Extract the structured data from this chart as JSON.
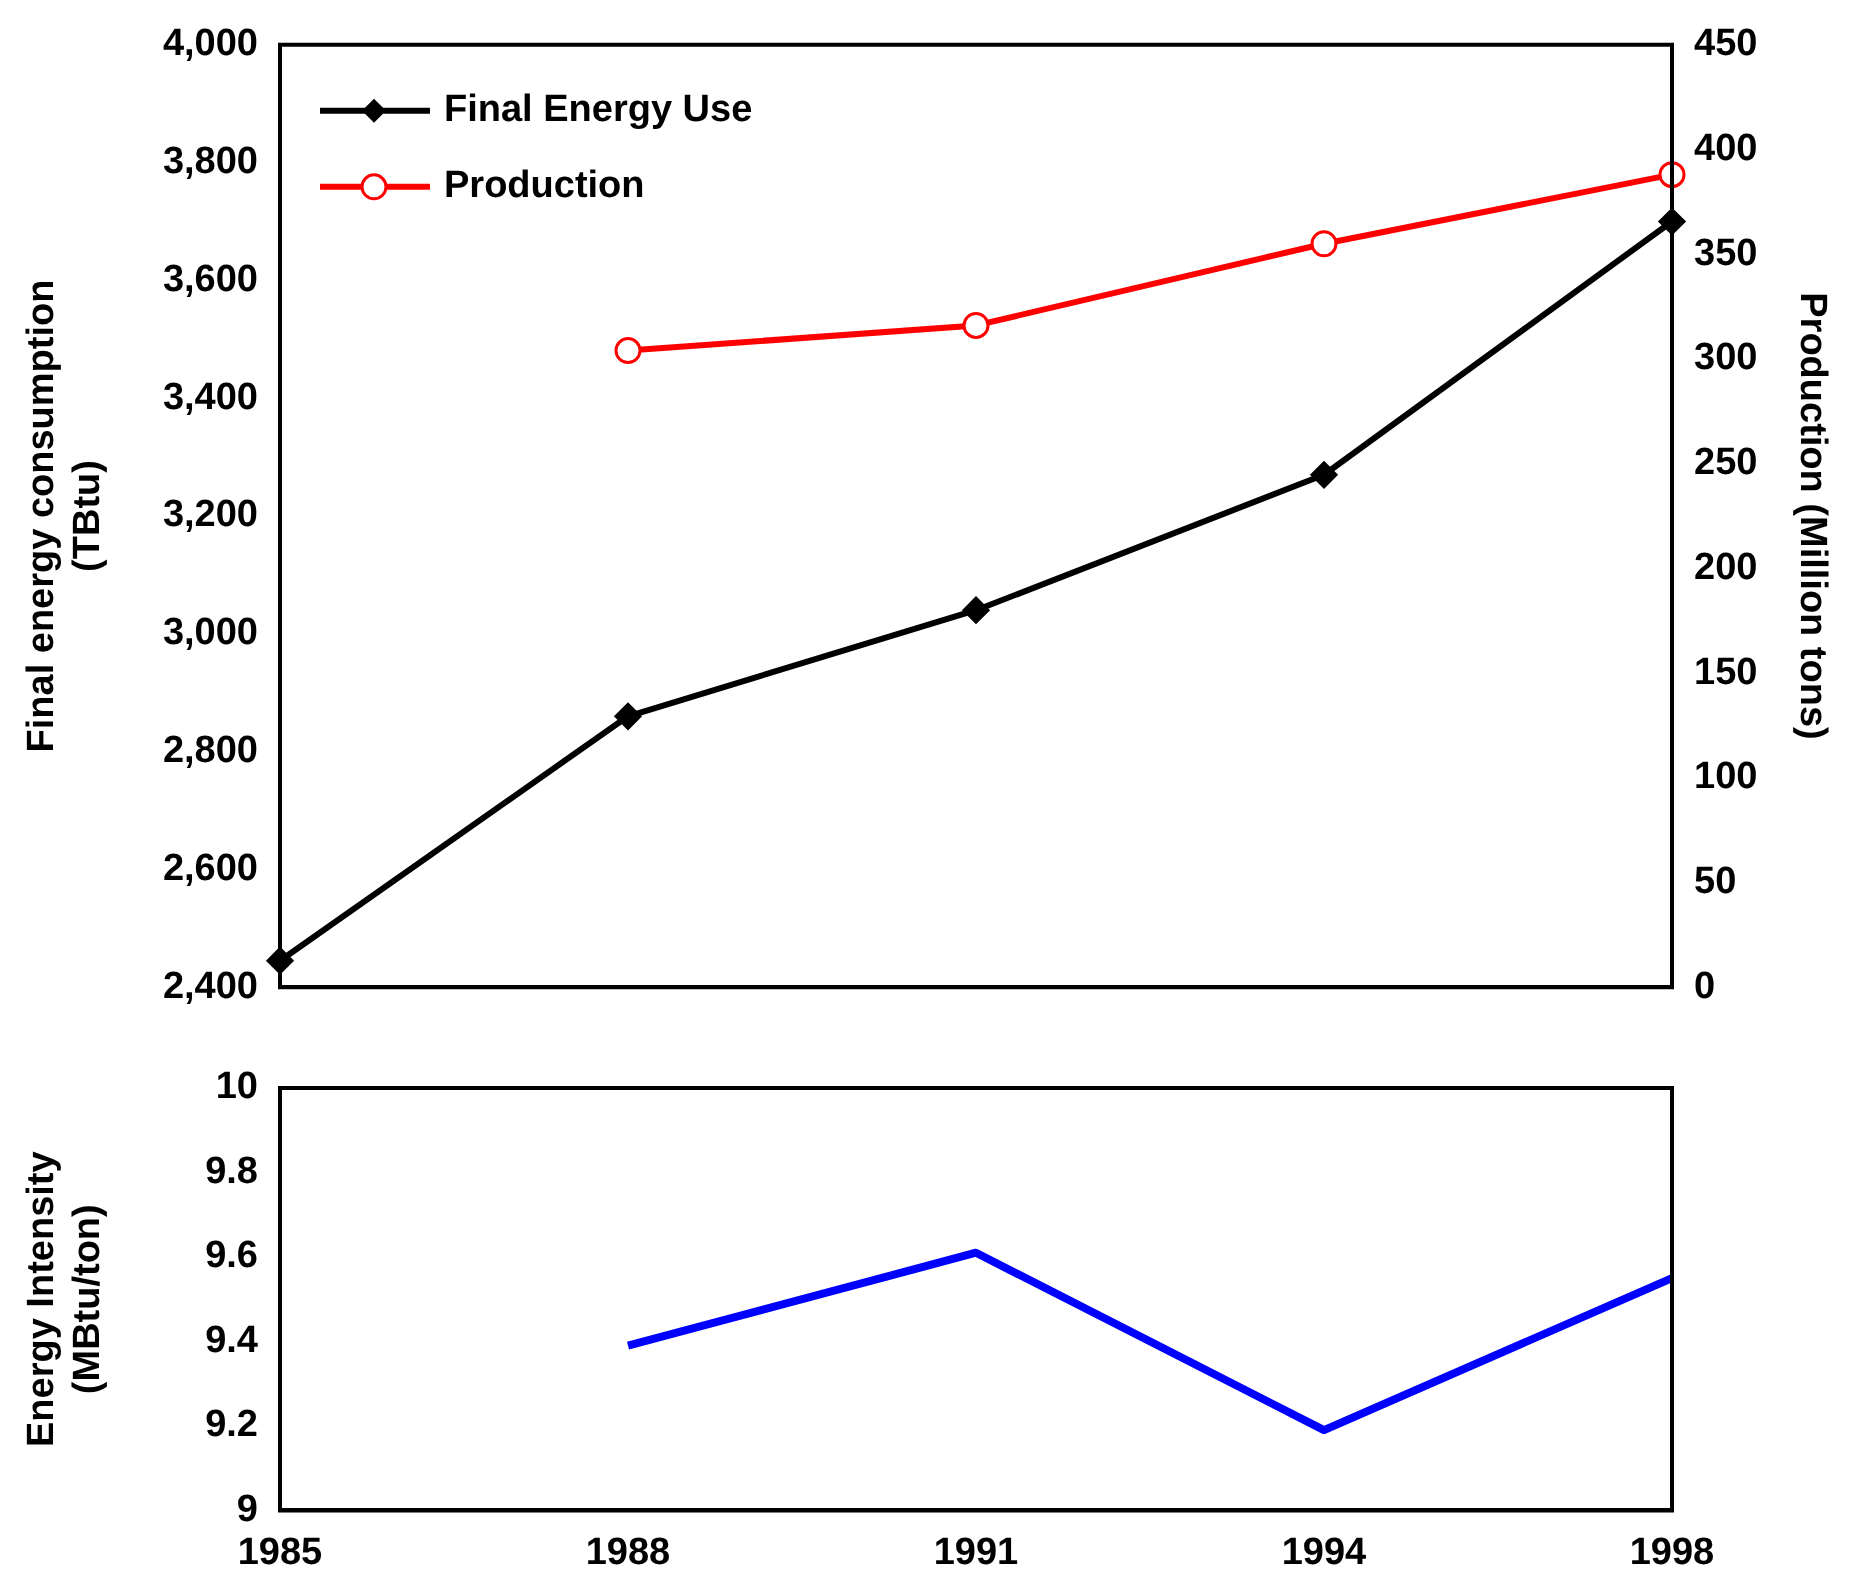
{
  "chart_data": [
    {
      "type": "line",
      "ylabel": "Final energy consumption (TBtu)",
      "y2label": "Production (Million tons)",
      "categories": [
        "1985",
        "1988",
        "1991",
        "1994",
        "1998"
      ],
      "tick_labels": "y",
      "legend": "top left",
      "grid": false,
      "ylim": [
        2400,
        4000
      ],
      "yticks": [
        {
          "value": 2400,
          "label": "2,400"
        },
        {
          "value": 2600,
          "label": "2,600"
        },
        {
          "value": 2800,
          "label": "2,800"
        },
        {
          "value": 3000,
          "label": "3,000"
        },
        {
          "value": 3200,
          "label": "3,200"
        },
        {
          "value": 3400,
          "label": "3,400"
        },
        {
          "value": 3600,
          "label": "3,600"
        },
        {
          "value": 3800,
          "label": "3,800"
        },
        {
          "value": 4000,
          "label": "4,000"
        }
      ],
      "y2lim": [
        0,
        450
      ],
      "y2ticks": [
        0,
        50,
        100,
        150,
        200,
        250,
        300,
        350,
        400,
        450
      ],
      "series": [
        {
          "name": "Final Energy Use",
          "color": "#000000",
          "marker": "diamond",
          "values": [
            2445,
            2860,
            3040,
            3270,
            3700
          ]
        },
        {
          "name": "Production",
          "color": "#ff0000",
          "marker": "circle",
          "axis": "y2",
          "values": [
            null,
            304,
            316,
            355,
            388
          ]
        }
      ]
    },
    {
      "type": "line",
      "ylabel": "Energy Intensity (MBtu/ton)",
      "categories": [
        "1985",
        "1988",
        "1991",
        "1994",
        "1998"
      ],
      "legend": false,
      "grid": false,
      "marker": "none",
      "ylim": [
        9,
        10
      ],
      "yticks": [
        9,
        9.2,
        9.4,
        9.6,
        9.8,
        10
      ],
      "series": [
        {
          "color": "#0000ff",
          "values": [
            null,
            9.39,
            9.61,
            9.19,
            9.55
          ]
        }
      ]
    }
  ]
}
